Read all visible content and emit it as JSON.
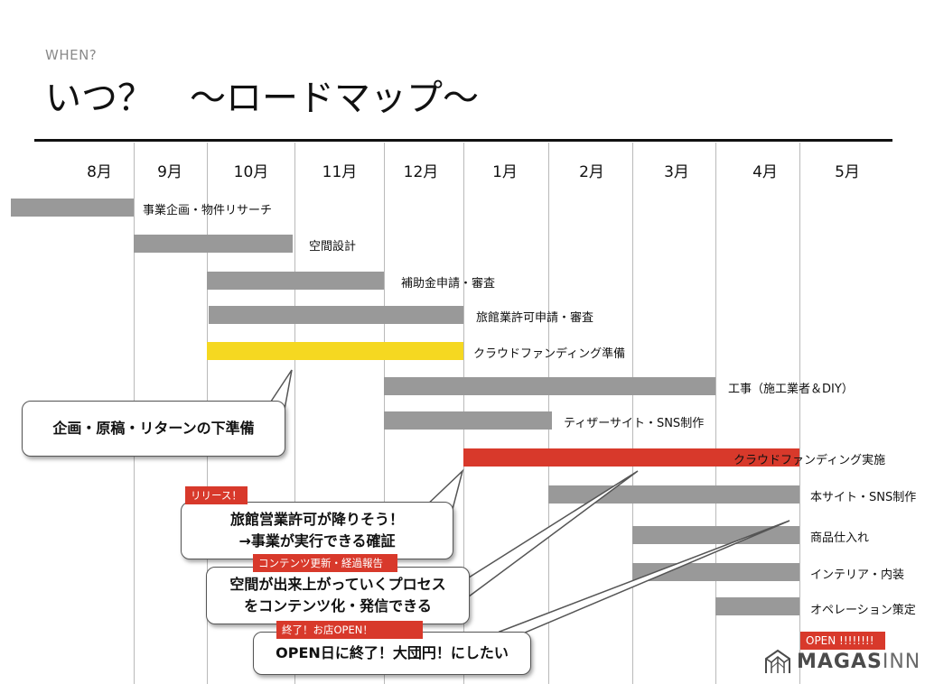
{
  "header": {
    "subtitle": "WHEN?",
    "title": "いつ？　〜ロードマップ〜"
  },
  "months": [
    "8月",
    "9月",
    "10月",
    "11月",
    "12月",
    "1月",
    "2月",
    "3月",
    "4月",
    "5月"
  ],
  "tasks": [
    {
      "label": "事業企画・物件リサーチ",
      "color": "#999999"
    },
    {
      "label": "空間設計",
      "color": "#999999"
    },
    {
      "label": "補助金申請・審査",
      "color": "#999999"
    },
    {
      "label": "旅館業許可申請・審査",
      "color": "#999999"
    },
    {
      "label": "クラウドファンディング準備",
      "color": "#f5d821"
    },
    {
      "label": "工事（施工業者＆DIY）",
      "color": "#999999"
    },
    {
      "label": "ティザーサイト・SNS制作",
      "color": "#999999"
    },
    {
      "label": "クラウドファンディング実施",
      "color": "#d8392b"
    },
    {
      "label": "本サイト・SNS制作",
      "color": "#999999"
    },
    {
      "label": "商品仕入れ",
      "color": "#999999"
    },
    {
      "label": "インテリア・内装",
      "color": "#999999"
    },
    {
      "label": "オペレーション策定",
      "color": "#999999"
    },
    {
      "label": "OPEN !!!!!!!!",
      "color": "#d8392b"
    }
  ],
  "tags": {
    "release": "リリース！",
    "content_update": "コンテンツ更新・経過報告",
    "finish_open": "終了！お店OPEN！"
  },
  "callouts": {
    "prep": "企画・原稿・リターンの下準備",
    "license_line1": "旅館営業許可が降りそう！",
    "license_line2": "→事業が実行できる確証",
    "process_line1": "空間が出来上がっていくプロセス",
    "process_line2": "をコンテンツ化・発信できる",
    "open": "OPEN日に終了！大団円！にしたい"
  },
  "logo": {
    "icon": "house-logo-icon",
    "text_bold": "MAGAS",
    "text_light": "INN"
  },
  "colors": {
    "gray_bar": "#999999",
    "yellow_bar": "#f5d821",
    "red_bar": "#d8392b",
    "rule": "#111111"
  }
}
